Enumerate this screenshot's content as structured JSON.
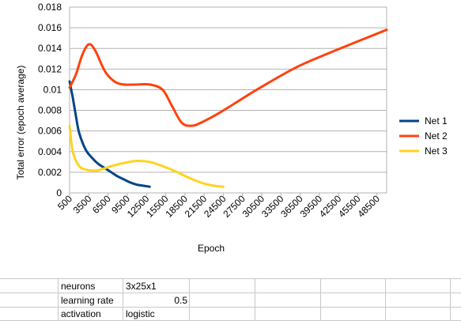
{
  "chart_data": {
    "type": "line",
    "title": "",
    "xlabel": "Epoch",
    "ylabel": "Total error (epoch average)",
    "xlim": [
      500,
      50000
    ],
    "ylim": [
      0,
      0.018
    ],
    "x_ticks": [
      "500",
      "3500",
      "6500",
      "9500",
      "12500",
      "15500",
      "18500",
      "21500",
      "24500",
      "27500",
      "30500",
      "33500",
      "36500",
      "39500",
      "42500",
      "45500",
      "48500"
    ],
    "y_ticks": [
      "0",
      "0.002",
      "0.004",
      "0.006",
      "0.008",
      "0.01",
      "0.012",
      "0.014",
      "0.016",
      "0.018"
    ],
    "grid": "horizontal",
    "legend_position": "right",
    "series": [
      {
        "name": "Net 1",
        "color": "#004586",
        "points": [
          [
            500,
            0.0108
          ],
          [
            1000,
            0.0092
          ],
          [
            1500,
            0.0074
          ],
          [
            2000,
            0.0058
          ],
          [
            3000,
            0.0042
          ],
          [
            4000,
            0.0034
          ],
          [
            5000,
            0.0028
          ],
          [
            6000,
            0.0024
          ],
          [
            7000,
            0.002
          ],
          [
            8000,
            0.0016
          ],
          [
            9000,
            0.0013
          ],
          [
            10000,
            0.001
          ],
          [
            11000,
            0.0008
          ],
          [
            12000,
            0.0007
          ],
          [
            13000,
            0.0006
          ]
        ]
      },
      {
        "name": "Net 2",
        "color": "#ff420e",
        "points": [
          [
            500,
            0.0102
          ],
          [
            1500,
            0.0115
          ],
          [
            2500,
            0.0134
          ],
          [
            3500,
            0.0144
          ],
          [
            4500,
            0.0138
          ],
          [
            6000,
            0.0118
          ],
          [
            7500,
            0.0108
          ],
          [
            9000,
            0.0105
          ],
          [
            11000,
            0.0105
          ],
          [
            13000,
            0.0105
          ],
          [
            15000,
            0.01
          ],
          [
            16500,
            0.0084
          ],
          [
            18000,
            0.0068
          ],
          [
            19500,
            0.0065
          ],
          [
            21000,
            0.0068
          ],
          [
            24000,
            0.0078
          ],
          [
            30000,
            0.0101
          ],
          [
            36000,
            0.0122
          ],
          [
            42000,
            0.0138
          ],
          [
            50000,
            0.0158
          ]
        ]
      },
      {
        "name": "Net 3",
        "color": "#ffd320",
        "points": [
          [
            500,
            0.0065
          ],
          [
            1000,
            0.004
          ],
          [
            2000,
            0.0026
          ],
          [
            3500,
            0.0022
          ],
          [
            5000,
            0.0022
          ],
          [
            7000,
            0.0026
          ],
          [
            9000,
            0.0029
          ],
          [
            11000,
            0.0031
          ],
          [
            13000,
            0.003
          ],
          [
            15000,
            0.0026
          ],
          [
            17000,
            0.0021
          ],
          [
            19000,
            0.0015
          ],
          [
            21000,
            0.001
          ],
          [
            23000,
            0.0007
          ],
          [
            24500,
            0.0006
          ]
        ]
      }
    ]
  },
  "sheet": {
    "rows": [
      {
        "label": "neurons",
        "value": "3x25x1"
      },
      {
        "label": "learning rate",
        "value": "0.5"
      },
      {
        "label": "activation",
        "value": "logistic"
      }
    ]
  }
}
